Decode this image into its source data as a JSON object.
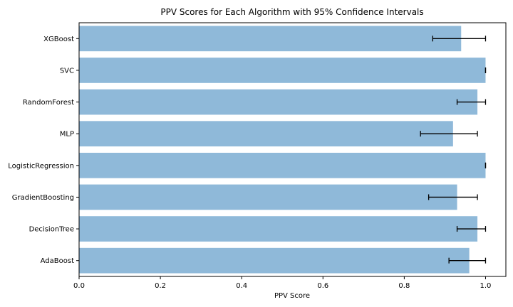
{
  "chart_data": {
    "type": "bar",
    "orientation": "horizontal",
    "title": "PPV Scores for Each Algorithm with 95% Confidence Intervals",
    "xlabel": "PPV Score",
    "ylabel": "",
    "xlim": [
      0.0,
      1.05
    ],
    "x_ticks": [
      "0.0",
      "0.2",
      "0.4",
      "0.6",
      "0.8",
      "1.0"
    ],
    "grid": false,
    "bar_color": "#8fb9d9",
    "errorbar_color": "#000000",
    "categories": [
      "XGBoost",
      "SVC",
      "RandomForest",
      "MLP",
      "LogisticRegression",
      "GradientBoosting",
      "DecisionTree",
      "AdaBoost"
    ],
    "values": [
      0.94,
      1.0,
      0.98,
      0.92,
      1.0,
      0.93,
      0.98,
      0.96
    ],
    "ci_low": [
      0.87,
      1.0,
      0.93,
      0.84,
      1.0,
      0.86,
      0.93,
      0.91
    ],
    "ci_high": [
      1.0,
      1.0,
      1.0,
      0.98,
      1.0,
      0.98,
      1.0,
      1.0
    ]
  }
}
